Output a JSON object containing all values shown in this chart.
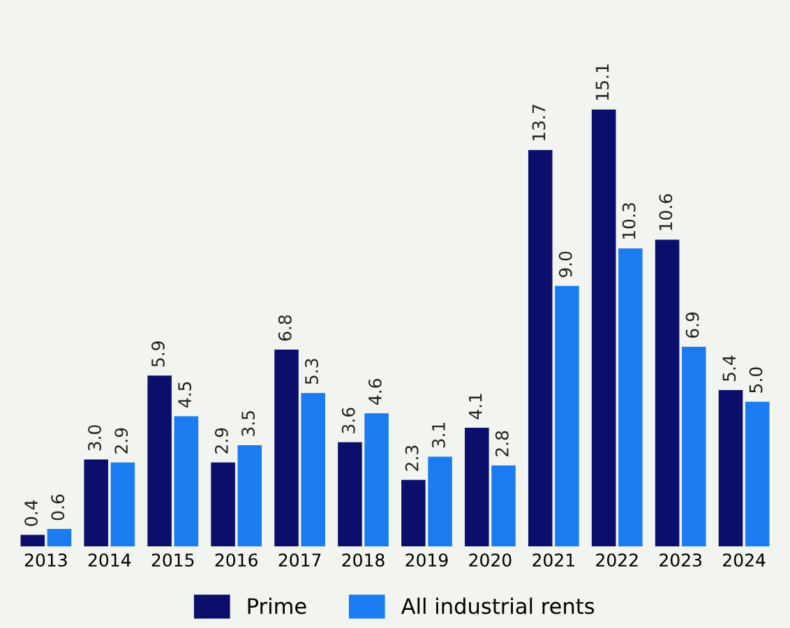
{
  "chart_data": {
    "type": "bar",
    "categories": [
      "2013",
      "2014",
      "2015",
      "2016",
      "2017",
      "2018",
      "2019",
      "2020",
      "2021",
      "2022",
      "2023",
      "2024"
    ],
    "series": [
      {
        "name": "Prime",
        "color": "#0b0f6b",
        "values": [
          0.4,
          3.0,
          5.9,
          2.9,
          6.8,
          3.6,
          2.3,
          4.1,
          13.7,
          15.1,
          10.6,
          5.4
        ],
        "value_labels": [
          "0.4",
          "3.0",
          "5.9",
          "2.9",
          "6.8",
          "3.6",
          "2.3",
          "4.1",
          "13.7",
          "15.1",
          "10.6",
          "5.4"
        ]
      },
      {
        "name": "All industrial rents",
        "color": "#1a7cf0",
        "values": [
          0.6,
          2.9,
          4.5,
          3.5,
          5.3,
          4.6,
          3.1,
          2.8,
          9.0,
          10.3,
          6.9,
          5.0
        ],
        "value_labels": [
          "0.6",
          "2.9",
          "4.5",
          "3.5",
          "5.3",
          "4.6",
          "3.1",
          "2.8",
          "9.0",
          "10.3",
          "6.9",
          "5.0"
        ]
      }
    ],
    "legend": "bottom"
  }
}
